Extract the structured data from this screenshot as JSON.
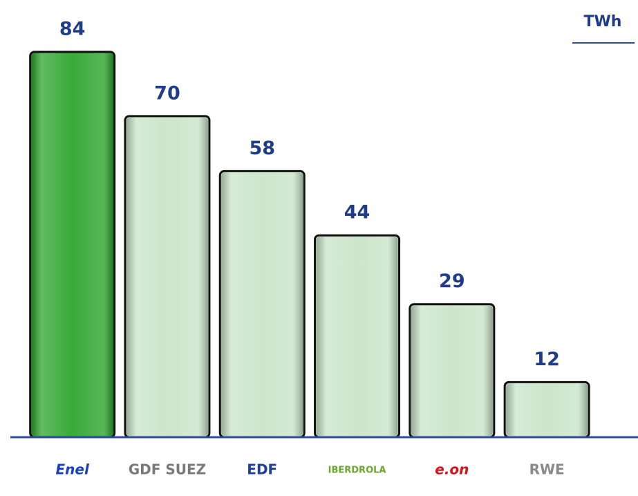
{
  "chart_data": {
    "type": "bar",
    "unit": "TWh",
    "categories": [
      "Enel",
      "GDF SUEZ",
      "EDF",
      "IBERDROLA",
      "e.on",
      "RWE"
    ],
    "values": [
      84,
      70,
      58,
      44,
      29,
      12
    ],
    "colors": [
      "#2ea52e",
      "#c9e4c9",
      "#c9e4c9",
      "#c9e4c9",
      "#c9e4c9",
      "#c9e4c9"
    ],
    "category_colors": [
      "#1a3fbf",
      "#7a7a7a",
      "#1f3f99",
      "#6aa82a",
      "#d8121b",
      "#8a8a8a"
    ]
  }
}
